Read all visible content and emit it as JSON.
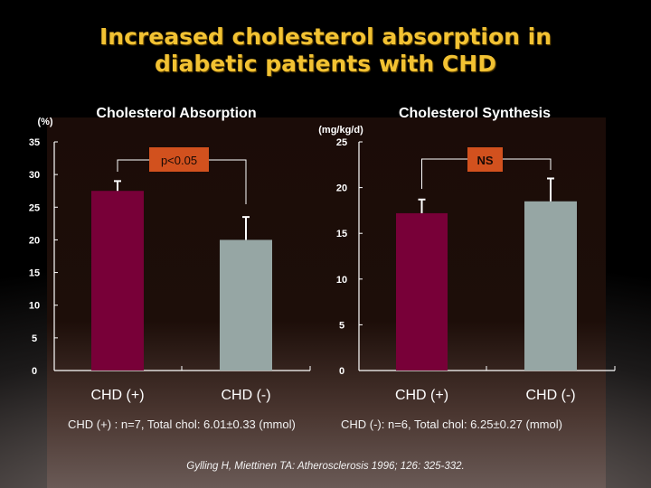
{
  "title_line1": "Increased cholesterol absorption in",
  "title_line2": "diabetic patients with CHD",
  "colors": {
    "chd_plus": "#780038",
    "chd_minus": "#96a6a4",
    "sig_box": "#d2511e",
    "title": "#f2c233"
  },
  "chart_data": [
    {
      "type": "bar",
      "title": "Cholesterol Absorption",
      "ylabel": "(%)",
      "ylim": [
        0,
        35
      ],
      "yticks": [
        "0",
        "5",
        "10",
        "15",
        "20",
        "25",
        "30",
        "35"
      ],
      "categories": [
        "CHD (+)",
        "CHD (-)"
      ],
      "values": [
        27.5,
        20
      ],
      "error_upper": [
        29,
        23.5
      ],
      "annotation": "p<0.05"
    },
    {
      "type": "bar",
      "title": "Cholesterol Synthesis",
      "ylabel": "(mg/kg/d)",
      "ylim": [
        0,
        25
      ],
      "yticks": [
        "0",
        "5",
        "10",
        "15",
        "20",
        "25"
      ],
      "categories": [
        "CHD (+)",
        "CHD (-)"
      ],
      "values": [
        17.2,
        18.5
      ],
      "error_upper": [
        18.7,
        21
      ],
      "annotation": "NS"
    }
  ],
  "footnote_left": "CHD (+) :  n=7, Total chol: 6.01±0.33 (mmol)",
  "footnote_right": "CHD (-): n=6, Total chol: 6.25±0.27 (mmol)",
  "citation": "Gylling H, Miettinen TA: Atherosclerosis 1996; 126: 325-332."
}
